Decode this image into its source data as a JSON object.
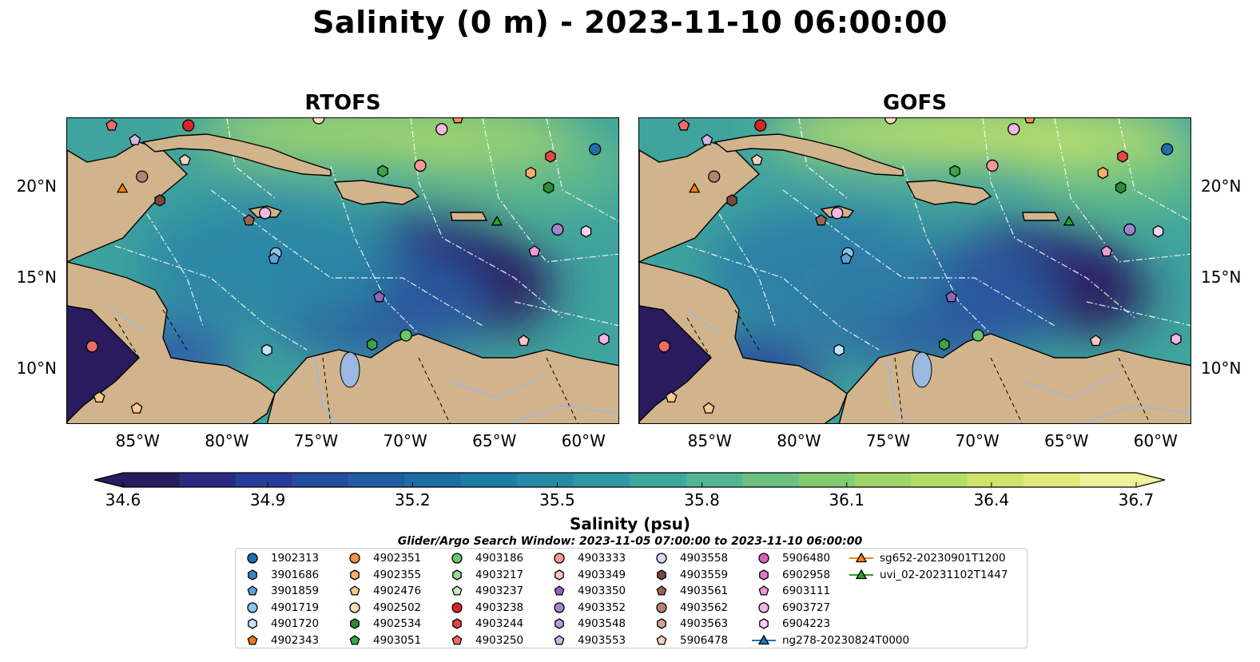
{
  "figure": {
    "title": "Salinity (0 m) - 2023-11-10 06:00:00",
    "panels": [
      {
        "title": "RTOFS"
      },
      {
        "title": "GOFS"
      }
    ],
    "lon_ticks": [
      "85°W",
      "80°W",
      "75°W",
      "70°W",
      "65°W",
      "60°W"
    ],
    "lat_ticks": [
      "20°N",
      "15°N",
      "10°N"
    ],
    "colorbar": {
      "label": "Salinity (psu)",
      "ticks": [
        "34.6",
        "34.9",
        "35.2",
        "35.5",
        "35.8",
        "36.1",
        "36.4",
        "36.7"
      ],
      "min": 34.6,
      "max": 36.7,
      "colors": [
        "#2a1a5e",
        "#2c2a80",
        "#283b96",
        "#234d9e",
        "#1f5ea3",
        "#1d6da5",
        "#1f7ca7",
        "#268aa6",
        "#3199a3",
        "#40a79c",
        "#54b592",
        "#6ac183",
        "#84cc72",
        "#9dd56a",
        "#b5dc67",
        "#cde36c",
        "#e2ea7c",
        "#f2f19a"
      ]
    },
    "search_window": "Glider/Argo Search Window: 2023-11-05 07:00:00 to 2023-11-10 06:00:00",
    "legend": [
      {
        "label": "1902313",
        "marker": "circle",
        "color": "#1f6fb0"
      },
      {
        "label": "3901686",
        "marker": "hexagon",
        "color": "#3a87c7"
      },
      {
        "label": "3901859",
        "marker": "pentagon",
        "color": "#5ea3d8"
      },
      {
        "label": "4901719",
        "marker": "circle",
        "color": "#8ec3ea"
      },
      {
        "label": "4901720",
        "marker": "hexagon",
        "color": "#c6e2f7"
      },
      {
        "label": "4902343",
        "marker": "pentagon",
        "color": "#ef7a1a"
      },
      {
        "label": "4902351",
        "marker": "circle",
        "color": "#f39243"
      },
      {
        "label": "4902355",
        "marker": "hexagon",
        "color": "#f7ad6c"
      },
      {
        "label": "4902476",
        "marker": "pentagon",
        "color": "#f9c790"
      },
      {
        "label": "4902502",
        "marker": "circle",
        "color": "#fbdcbc"
      },
      {
        "label": "4902534",
        "marker": "hexagon",
        "color": "#2e8b34"
      },
      {
        "label": "4903051",
        "marker": "pentagon",
        "color": "#3aa544"
      },
      {
        "label": "4903186",
        "marker": "circle",
        "color": "#6ac66a"
      },
      {
        "label": "4903217",
        "marker": "hexagon",
        "color": "#9ad994"
      },
      {
        "label": "4903237",
        "marker": "pentagon",
        "color": "#c6ecbe"
      },
      {
        "label": "4903238",
        "marker": "circle",
        "color": "#d62728"
      },
      {
        "label": "4903244",
        "marker": "hexagon",
        "color": "#e34646"
      },
      {
        "label": "4903250",
        "marker": "pentagon",
        "color": "#ef6a6a"
      },
      {
        "label": "4903333",
        "marker": "circle",
        "color": "#f29896"
      },
      {
        "label": "4903349",
        "marker": "hexagon",
        "color": "#f8c6c3"
      },
      {
        "label": "4903350",
        "marker": "pentagon",
        "color": "#8e66bd"
      },
      {
        "label": "4903352",
        "marker": "circle",
        "color": "#a384cc"
      },
      {
        "label": "4903548",
        "marker": "hexagon",
        "color": "#b99edb"
      },
      {
        "label": "4903553",
        "marker": "pentagon",
        "color": "#cdb5e8"
      },
      {
        "label": "4903558",
        "marker": "circle",
        "color": "#e2d2f3"
      },
      {
        "label": "4903559",
        "marker": "hexagon",
        "color": "#7b4a3e"
      },
      {
        "label": "4903561",
        "marker": "pentagon",
        "color": "#9a6454"
      },
      {
        "label": "4903562",
        "marker": "circle",
        "color": "#b78272"
      },
      {
        "label": "4903563",
        "marker": "hexagon",
        "color": "#d3a596"
      },
      {
        "label": "5906478",
        "marker": "pentagon",
        "color": "#f5cec0"
      },
      {
        "label": "5906480",
        "marker": "circle",
        "color": "#d860b8"
      },
      {
        "label": "6902958",
        "marker": "hexagon",
        "color": "#e27cc8"
      },
      {
        "label": "6903111",
        "marker": "pentagon",
        "color": "#ec9ad6"
      },
      {
        "label": "6903727",
        "marker": "circle",
        "color": "#f2b7e2"
      },
      {
        "label": "6904223",
        "marker": "hexagon",
        "color": "#f8d5ee"
      },
      {
        "label": "ng278-20230824T0000",
        "marker": "triangle-line",
        "color": "#1f77b4"
      },
      {
        "label": "sg652-20230901T1200",
        "marker": "triangle-line",
        "color": "#ff7f0e"
      },
      {
        "label": "uvi_02-20231102T1447",
        "marker": "triangle-line",
        "color": "#2ca02c"
      }
    ]
  }
}
